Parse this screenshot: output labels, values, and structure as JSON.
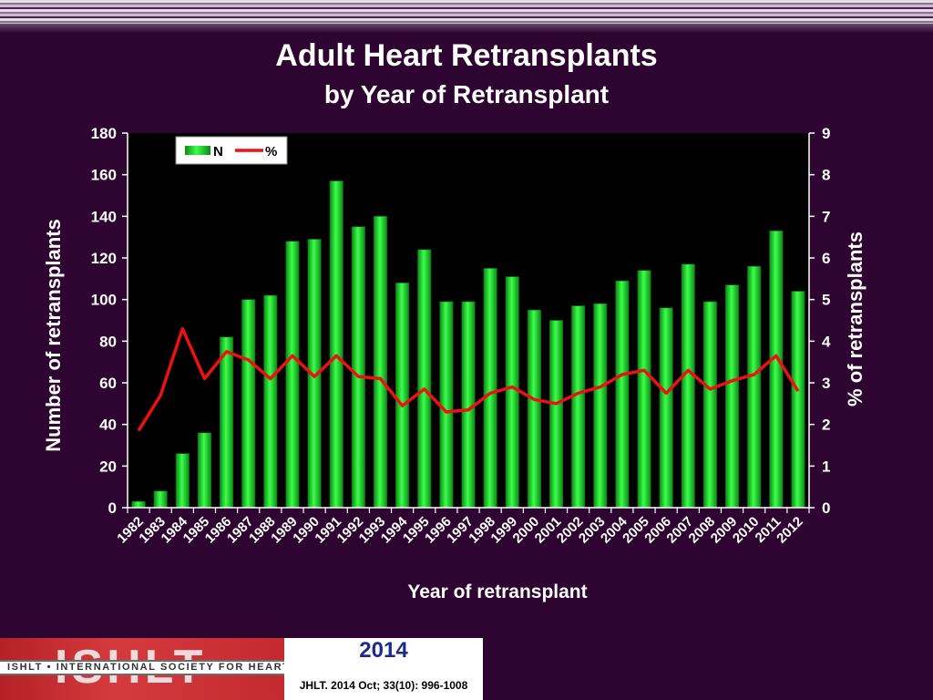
{
  "slide": {
    "title": "Adult Heart Retransplants",
    "subtitle": "by Year of Retransplant"
  },
  "chart_data": {
    "type": "bar",
    "categories": [
      "1982",
      "1983",
      "1984",
      "1985",
      "1986",
      "1987",
      "1988",
      "1989",
      "1990",
      "1991",
      "1992",
      "1993",
      "1994",
      "1995",
      "1996",
      "1997",
      "1998",
      "1999",
      "2000",
      "2001",
      "2002",
      "2003",
      "2004",
      "2005",
      "2006",
      "2007",
      "2008",
      "2009",
      "2010",
      "2011",
      "2012"
    ],
    "series": [
      {
        "name": "N",
        "type": "bar",
        "axis": "left",
        "color": "#22dd33",
        "values": [
          3,
          8,
          26,
          36,
          82,
          100,
          102,
          128,
          129,
          157,
          135,
          140,
          108,
          124,
          99,
          99,
          115,
          111,
          95,
          90,
          97,
          98,
          109,
          114,
          96,
          117,
          99,
          107,
          116,
          133,
          104
        ]
      },
      {
        "name": "%",
        "type": "line",
        "axis": "right",
        "color": "#ee1111",
        "values": [
          1.85,
          2.7,
          4.3,
          3.1,
          3.75,
          3.55,
          3.1,
          3.65,
          3.15,
          3.65,
          3.15,
          3.1,
          2.45,
          2.85,
          2.3,
          2.35,
          2.75,
          2.9,
          2.6,
          2.5,
          2.75,
          2.9,
          3.2,
          3.3,
          2.75,
          3.3,
          2.85,
          3.05,
          3.2,
          3.65,
          2.8
        ]
      }
    ],
    "xlabel": "Year of retransplant",
    "ylabel": "Number of retransplants",
    "y2label": "% of retransplants",
    "ylim": [
      0,
      180
    ],
    "y2lim": [
      0,
      9
    ],
    "yticks": [
      0,
      20,
      40,
      60,
      80,
      100,
      120,
      140,
      160,
      180
    ],
    "y2ticks": [
      0,
      1,
      2,
      3,
      4,
      5,
      6,
      7,
      8,
      9
    ],
    "legend_position": "top-left",
    "grid": false,
    "plot_background": "#000000"
  },
  "footer": {
    "logo_letters": "ISHLT",
    "logo_band": "ISHLT • INTERNATIONAL SOCIETY FOR HEART AND LUNG TRANSPLANTATION",
    "year": "2014",
    "citation": "JHLT. 2014 Oct; 33(10): 996-1008"
  }
}
